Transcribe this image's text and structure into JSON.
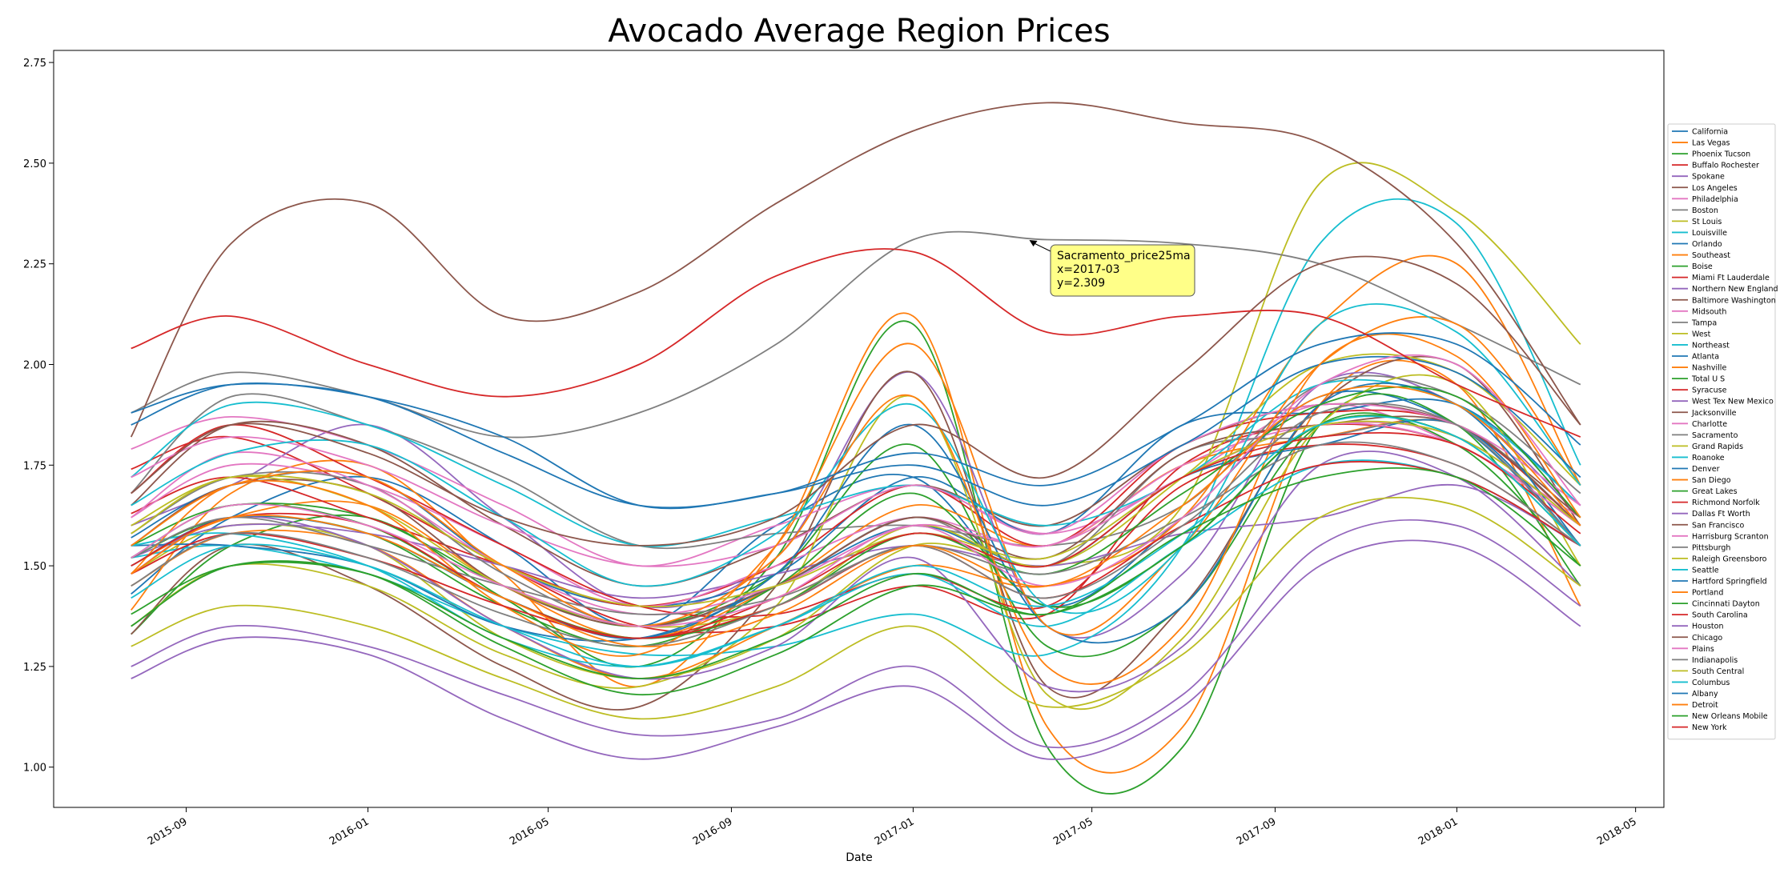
{
  "chart_data": {
    "type": "line",
    "title": "Avocado Average Region Prices",
    "xlabel": "Date",
    "ylabel": "",
    "xlim": [
      "2015-06-04",
      "2018-05-20"
    ],
    "ylim": [
      0.9,
      2.78
    ],
    "x_ticks": [
      "2015-09",
      "2016-01",
      "2016-05",
      "2016-09",
      "2017-01",
      "2017-05",
      "2017-09",
      "2018-01",
      "2018-05"
    ],
    "y_ticks": [
      "1.00",
      "1.25",
      "1.50",
      "1.75",
      "2.00",
      "2.25",
      "2.50",
      "2.75"
    ],
    "grid": false,
    "legend_position": "right",
    "annotation": {
      "series": "Sacramento",
      "x": "2017-03",
      "y": 2.309,
      "lines": [
        "Sacramento_price25ma",
        "x=2017-03",
        "y=2.309"
      ],
      "box_color": "#ffff88"
    },
    "colors": [
      "#1f77b4",
      "#ff7f0e",
      "#2ca02c",
      "#d62728",
      "#9467bd",
      "#8c564b",
      "#e377c2",
      "#7f7f7f",
      "#bcbd22",
      "#17becf"
    ],
    "x_dates": [
      "2015-07-26",
      "2015-10-01",
      "2016-01-01",
      "2016-04-01",
      "2016-07-01",
      "2016-10-01",
      "2017-01-01",
      "2017-04-01",
      "2017-07-01",
      "2017-10-01",
      "2018-01-01",
      "2018-03-25"
    ],
    "series": [
      {
        "name": "California",
        "values": [
          1.43,
          1.62,
          1.72,
          1.55,
          1.35,
          1.6,
          1.72,
          1.4,
          1.62,
          1.92,
          1.85,
          1.55
        ]
      },
      {
        "name": "Las Vegas",
        "values": [
          1.39,
          1.68,
          1.75,
          1.48,
          1.2,
          1.55,
          2.12,
          1.1,
          1.1,
          1.9,
          1.95,
          1.4
        ]
      },
      {
        "name": "Phoenix Tucson",
        "values": [
          1.33,
          1.55,
          1.62,
          1.42,
          1.25,
          1.52,
          2.1,
          1.05,
          1.05,
          1.85,
          1.85,
          1.45
        ]
      },
      {
        "name": "Buffalo Rochester",
        "values": [
          1.74,
          1.82,
          1.68,
          1.5,
          1.35,
          1.35,
          1.45,
          1.38,
          1.75,
          1.85,
          1.8,
          1.6
        ]
      },
      {
        "name": "Spokane",
        "values": [
          1.6,
          1.7,
          1.85,
          1.62,
          1.4,
          1.52,
          1.98,
          1.35,
          1.48,
          1.95,
          1.9,
          1.62
        ]
      },
      {
        "name": "Los Angeles",
        "values": [
          1.33,
          1.55,
          1.45,
          1.25,
          1.15,
          1.45,
          1.98,
          1.2,
          1.4,
          1.9,
          2.0,
          1.6
        ]
      },
      {
        "name": "Philadelphia",
        "values": [
          1.79,
          1.87,
          1.8,
          1.65,
          1.5,
          1.6,
          1.7,
          1.58,
          1.72,
          1.9,
          1.8,
          1.62
        ]
      },
      {
        "name": "Boston",
        "values": [
          1.68,
          1.92,
          1.85,
          1.72,
          1.55,
          1.58,
          1.6,
          1.55,
          1.65,
          1.95,
          1.92,
          1.68
        ]
      },
      {
        "name": "St Louis",
        "values": [
          1.48,
          1.6,
          1.55,
          1.32,
          1.22,
          1.32,
          1.55,
          1.5,
          1.65,
          2.45,
          2.38,
          2.05
        ]
      },
      {
        "name": "Louisville",
        "values": [
          1.52,
          1.55,
          1.48,
          1.35,
          1.28,
          1.3,
          1.38,
          1.28,
          1.55,
          2.3,
          2.35,
          1.75
        ]
      },
      {
        "name": "Orlando",
        "values": [
          1.57,
          1.7,
          1.72,
          1.5,
          1.4,
          1.48,
          1.72,
          1.58,
          1.85,
          1.88,
          1.9,
          1.65
        ]
      },
      {
        "name": "Southeast",
        "values": [
          1.5,
          1.62,
          1.65,
          1.45,
          1.32,
          1.45,
          1.65,
          1.55,
          1.75,
          1.82,
          1.85,
          1.6
        ]
      },
      {
        "name": "Boise",
        "values": [
          1.55,
          1.65,
          1.62,
          1.45,
          1.35,
          1.48,
          1.8,
          1.3,
          1.4,
          1.85,
          1.8,
          1.5
        ]
      },
      {
        "name": "Miami Ft Lauderdale",
        "values": [
          1.63,
          1.72,
          1.62,
          1.5,
          1.4,
          1.5,
          1.7,
          1.55,
          1.8,
          1.88,
          1.85,
          1.6
        ]
      },
      {
        "name": "Northern New England",
        "values": [
          1.52,
          1.6,
          1.58,
          1.5,
          1.42,
          1.48,
          1.55,
          1.5,
          1.58,
          1.62,
          1.7,
          1.55
        ]
      },
      {
        "name": "Baltimore Washington",
        "values": [
          1.65,
          1.85,
          1.8,
          1.6,
          1.45,
          1.55,
          1.7,
          1.6,
          1.8,
          1.9,
          1.85,
          1.62
        ]
      },
      {
        "name": "Midsouth",
        "values": [
          1.62,
          1.75,
          1.7,
          1.55,
          1.4,
          1.5,
          1.62,
          1.55,
          1.75,
          1.85,
          1.82,
          1.6
        ]
      },
      {
        "name": "Tampa",
        "values": [
          1.58,
          1.72,
          1.7,
          1.48,
          1.35,
          1.45,
          1.62,
          1.5,
          1.78,
          1.82,
          1.85,
          1.6
        ]
      },
      {
        "name": "West",
        "values": [
          1.35,
          1.5,
          1.45,
          1.28,
          1.2,
          1.4,
          1.92,
          1.18,
          1.32,
          1.85,
          1.95,
          1.5
        ]
      },
      {
        "name": "Northeast",
        "values": [
          1.72,
          1.9,
          1.85,
          1.7,
          1.55,
          1.62,
          1.7,
          1.6,
          1.72,
          1.95,
          1.9,
          1.65
        ]
      },
      {
        "name": "Atlanta",
        "values": [
          1.55,
          1.55,
          1.5,
          1.35,
          1.32,
          1.45,
          1.6,
          1.5,
          1.72,
          1.8,
          1.85,
          1.55
        ]
      },
      {
        "name": "Nashville",
        "values": [
          1.45,
          1.58,
          1.55,
          1.35,
          1.22,
          1.35,
          1.5,
          1.45,
          1.62,
          2.1,
          2.25,
          1.7
        ]
      },
      {
        "name": "Total U S",
        "values": [
          1.52,
          1.62,
          1.58,
          1.4,
          1.3,
          1.45,
          1.68,
          1.4,
          1.55,
          1.85,
          1.82,
          1.55
        ]
      },
      {
        "name": "Syracuse",
        "values": [
          1.68,
          1.85,
          1.72,
          1.55,
          1.4,
          1.38,
          1.48,
          1.4,
          1.7,
          1.8,
          1.75,
          1.55
        ]
      },
      {
        "name": "West Tex New Mexico",
        "values": [
          1.48,
          1.62,
          1.55,
          1.35,
          1.22,
          1.3,
          1.52,
          1.2,
          1.3,
          1.75,
          1.72,
          1.45
        ]
      },
      {
        "name": "Jacksonville",
        "values": [
          1.55,
          1.7,
          1.68,
          1.45,
          1.35,
          1.45,
          1.62,
          1.52,
          1.78,
          1.85,
          1.85,
          1.6
        ]
      },
      {
        "name": "Charlotte",
        "values": [
          1.72,
          1.82,
          1.75,
          1.6,
          1.5,
          1.55,
          1.7,
          1.58,
          1.8,
          1.9,
          1.85,
          1.65
        ]
      },
      {
        "name": "Sacramento",
        "values": [
          1.88,
          1.98,
          1.92,
          1.82,
          1.88,
          2.05,
          2.31,
          2.31,
          2.3,
          2.25,
          2.1,
          1.95
        ]
      },
      {
        "name": "Grand Rapids",
        "values": [
          1.58,
          1.72,
          1.65,
          1.45,
          1.35,
          1.4,
          1.6,
          1.5,
          1.72,
          2.0,
          1.98,
          1.7
        ]
      },
      {
        "name": "Roanoke",
        "values": [
          1.55,
          1.58,
          1.5,
          1.32,
          1.25,
          1.35,
          1.48,
          1.35,
          1.55,
          1.75,
          1.72,
          1.55
        ]
      },
      {
        "name": "Denver",
        "values": [
          1.5,
          1.62,
          1.58,
          1.42,
          1.32,
          1.48,
          1.85,
          1.35,
          1.4,
          1.9,
          1.9,
          1.55
        ]
      },
      {
        "name": "San Diego",
        "values": [
          1.48,
          1.7,
          1.65,
          1.4,
          1.28,
          1.55,
          2.05,
          1.35,
          1.55,
          2.0,
          2.1,
          1.7
        ]
      },
      {
        "name": "Great Lakes",
        "values": [
          1.52,
          1.65,
          1.6,
          1.42,
          1.32,
          1.4,
          1.58,
          1.48,
          1.68,
          1.9,
          1.92,
          1.62
        ]
      },
      {
        "name": "Richmond Norfolk",
        "values": [
          1.48,
          1.58,
          1.52,
          1.4,
          1.32,
          1.4,
          1.55,
          1.42,
          1.6,
          1.75,
          1.72,
          1.55
        ]
      },
      {
        "name": "Dallas Ft Worth",
        "values": [
          1.25,
          1.35,
          1.3,
          1.18,
          1.08,
          1.12,
          1.25,
          1.05,
          1.18,
          1.55,
          1.6,
          1.4
        ]
      },
      {
        "name": "San Francisco",
        "values": [
          1.82,
          2.3,
          2.4,
          2.12,
          2.18,
          2.4,
          2.58,
          2.65,
          2.6,
          2.55,
          2.3,
          1.85
        ]
      },
      {
        "name": "Harrisburg Scranton",
        "values": [
          1.62,
          1.78,
          1.7,
          1.5,
          1.38,
          1.45,
          1.6,
          1.55,
          1.72,
          1.85,
          1.8,
          1.6
        ]
      },
      {
        "name": "Pittsburgh",
        "values": [
          1.52,
          1.62,
          1.55,
          1.45,
          1.38,
          1.42,
          1.55,
          1.48,
          1.62,
          1.8,
          1.75,
          1.55
        ]
      },
      {
        "name": "Raleigh Greensboro",
        "values": [
          1.6,
          1.72,
          1.68,
          1.5,
          1.4,
          1.45,
          1.58,
          1.52,
          1.72,
          1.85,
          1.82,
          1.6
        ]
      },
      {
        "name": "Seattle",
        "values": [
          1.65,
          1.78,
          1.8,
          1.62,
          1.45,
          1.58,
          1.9,
          1.4,
          1.55,
          2.1,
          2.08,
          1.7
        ]
      },
      {
        "name": "Hartford Springfield",
        "values": [
          1.85,
          1.95,
          1.92,
          1.82,
          1.65,
          1.68,
          1.75,
          1.65,
          1.8,
          2.0,
          1.98,
          1.72
        ]
      },
      {
        "name": "Portland",
        "values": [
          1.55,
          1.7,
          1.72,
          1.5,
          1.35,
          1.52,
          1.92,
          1.25,
          1.35,
          2.0,
          2.02,
          1.62
        ]
      },
      {
        "name": "Cincinnati Dayton",
        "values": [
          1.35,
          1.5,
          1.48,
          1.3,
          1.18,
          1.28,
          1.45,
          1.38,
          1.55,
          1.85,
          1.82,
          1.55
        ]
      },
      {
        "name": "South Carolina",
        "values": [
          1.5,
          1.62,
          1.6,
          1.42,
          1.32,
          1.42,
          1.58,
          1.5,
          1.72,
          1.82,
          1.8,
          1.58
        ]
      },
      {
        "name": "Houston",
        "values": [
          1.22,
          1.32,
          1.28,
          1.12,
          1.02,
          1.1,
          1.2,
          1.02,
          1.15,
          1.5,
          1.55,
          1.35
        ]
      },
      {
        "name": "Chicago",
        "values": [
          1.68,
          1.85,
          1.78,
          1.62,
          1.55,
          1.62,
          1.85,
          1.72,
          1.98,
          2.25,
          2.2,
          1.85
        ]
      },
      {
        "name": "Plains",
        "values": [
          1.52,
          1.65,
          1.6,
          1.45,
          1.35,
          1.42,
          1.6,
          1.45,
          1.62,
          1.95,
          2.0,
          1.65
        ]
      },
      {
        "name": "Indianapolis",
        "values": [
          1.45,
          1.58,
          1.52,
          1.38,
          1.3,
          1.4,
          1.55,
          1.42,
          1.6,
          1.88,
          1.85,
          1.55
        ]
      },
      {
        "name": "South Central",
        "values": [
          1.3,
          1.4,
          1.35,
          1.22,
          1.12,
          1.2,
          1.35,
          1.15,
          1.28,
          1.62,
          1.65,
          1.45
        ]
      },
      {
        "name": "Columbus",
        "values": [
          1.42,
          1.55,
          1.5,
          1.35,
          1.25,
          1.35,
          1.5,
          1.4,
          1.58,
          1.85,
          1.82,
          1.55
        ]
      },
      {
        "name": "Albany",
        "values": [
          1.88,
          1.95,
          1.92,
          1.78,
          1.65,
          1.68,
          1.78,
          1.7,
          1.85,
          2.05,
          2.05,
          1.8
        ]
      },
      {
        "name": "Detroit",
        "values": [
          1.48,
          1.62,
          1.58,
          1.42,
          1.3,
          1.38,
          1.55,
          1.45,
          1.65,
          1.92,
          1.9,
          1.6
        ]
      },
      {
        "name": "New Orleans Mobile",
        "values": [
          1.38,
          1.5,
          1.48,
          1.32,
          1.22,
          1.32,
          1.48,
          1.38,
          1.58,
          1.72,
          1.72,
          1.5
        ]
      },
      {
        "name": "New York",
        "values": [
          2.04,
          2.12,
          2.0,
          1.92,
          2.0,
          2.22,
          2.28,
          2.08,
          2.12,
          2.12,
          1.95,
          1.82
        ]
      }
    ]
  }
}
